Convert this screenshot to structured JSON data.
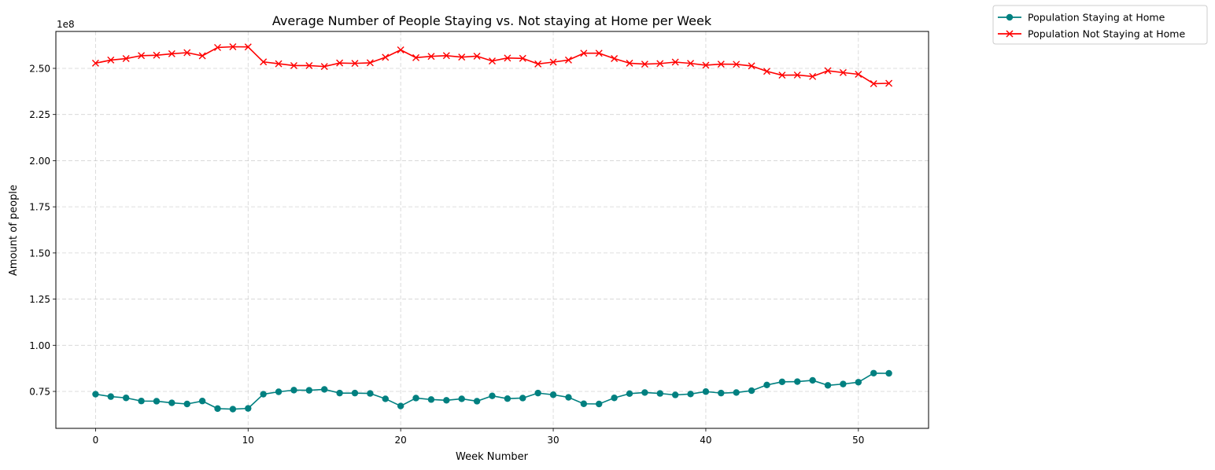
{
  "chart_data": {
    "type": "line",
    "title": "Average Number of People Staying vs. Not staying at Home per Week",
    "xlabel": "Week Number",
    "ylabel": "Amount of people",
    "y_offset_text": "1e8",
    "xlim": [
      -2.6,
      54.6
    ],
    "ylim": [
      55000000,
      270000000
    ],
    "xticks": [
      0,
      10,
      20,
      30,
      40,
      50
    ],
    "xtick_labels": [
      "0",
      "10",
      "20",
      "30",
      "40",
      "50"
    ],
    "yticks": [
      75000000,
      100000000,
      125000000,
      150000000,
      175000000,
      200000000,
      225000000,
      250000000
    ],
    "ytick_labels": [
      "0.75",
      "1.00",
      "1.25",
      "1.50",
      "1.75",
      "2.00",
      "2.25",
      "2.50"
    ],
    "grid": true,
    "legend_position": "outside top-right",
    "x": [
      0,
      1,
      2,
      3,
      4,
      5,
      6,
      7,
      8,
      9,
      10,
      11,
      12,
      13,
      14,
      15,
      16,
      17,
      18,
      19,
      20,
      21,
      22,
      23,
      24,
      25,
      26,
      27,
      28,
      29,
      30,
      31,
      32,
      33,
      34,
      35,
      36,
      37,
      38,
      39,
      40,
      41,
      42,
      43,
      44,
      45,
      46,
      47,
      48,
      49,
      50,
      51,
      52
    ],
    "series": [
      {
        "name": "Population Staying at Home",
        "color": "#008080",
        "marker": "circle",
        "values": [
          73500000,
          72200000,
          71500000,
          69800000,
          69700000,
          68800000,
          68200000,
          69800000,
          65700000,
          65400000,
          65800000,
          73500000,
          74800000,
          75700000,
          75600000,
          76100000,
          74100000,
          74100000,
          73900000,
          71000000,
          67100000,
          71400000,
          70600000,
          70200000,
          71000000,
          69700000,
          72600000,
          71100000,
          71400000,
          74100000,
          73200000,
          71800000,
          68300000,
          68200000,
          71500000,
          73800000,
          74400000,
          73900000,
          73100000,
          73600000,
          74900000,
          74100000,
          74400000,
          75400000,
          78500000,
          80200000,
          80300000,
          81000000,
          78300000,
          79000000,
          80000000,
          84900000,
          84800000
        ]
      },
      {
        "name": "Population Not Staying at Home",
        "color": "#ff0000",
        "marker": "x",
        "values": [
          252800000,
          254500000,
          255300000,
          256900000,
          257100000,
          257900000,
          258500000,
          256800000,
          261300000,
          261700000,
          261600000,
          253500000,
          252500000,
          251500000,
          251500000,
          251000000,
          252900000,
          252700000,
          253000000,
          256000000,
          260000000,
          255800000,
          256500000,
          256900000,
          256100000,
          256600000,
          254000000,
          255600000,
          255400000,
          252400000,
          253400000,
          254500000,
          258200000,
          258200000,
          255300000,
          252800000,
          252300000,
          252600000,
          253400000,
          252700000,
          251700000,
          252300000,
          252200000,
          251300000,
          248400000,
          246300000,
          246400000,
          245600000,
          248700000,
          247700000,
          246800000,
          241700000,
          241900000
        ]
      }
    ]
  }
}
